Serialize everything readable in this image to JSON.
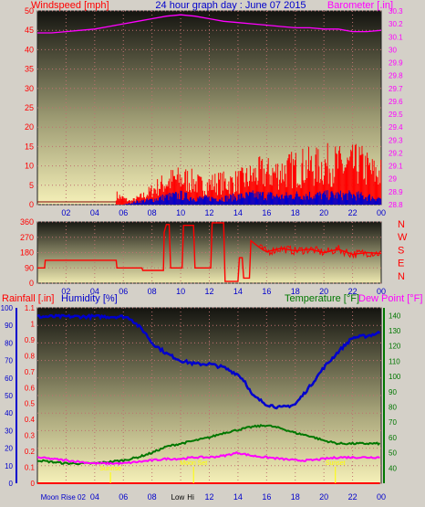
{
  "header": {
    "title": "24 hour graph day : June 07 2015",
    "left_label": "Windspeed [mph]",
    "right_label": "Barometer [.in]"
  },
  "colors": {
    "background": "#d4d0c8",
    "red": "#ff0000",
    "blue": "#0000cc",
    "magenta": "#ff00ff",
    "green": "#007700",
    "yellow": "#ffff00",
    "plot_top": "#141410",
    "plot_bottom": "#f5f0b8"
  },
  "time_ticks": [
    "02",
    "04",
    "06",
    "08",
    "10",
    "12",
    "14",
    "16",
    "18",
    "20",
    "22",
    "00"
  ],
  "chart_data": [
    {
      "type": "line",
      "panel": "wind-barometer",
      "x_unit": "hour",
      "xlim": [
        0,
        24
      ],
      "left_axis": {
        "label": "Windspeed [mph]",
        "range": [
          0,
          50
        ],
        "ticks": [
          "0",
          "5",
          "10",
          "15",
          "20",
          "25",
          "30",
          "35",
          "40",
          "45",
          "50"
        ]
      },
      "right_axis": {
        "label": "Barometer [.in]",
        "range": [
          28.8,
          30.3
        ],
        "ticks": [
          "28.8",
          "28.9",
          "29",
          "29.1",
          "29.2",
          "29.3",
          "29.4",
          "29.5",
          "29.6",
          "29.7",
          "29.8",
          "29.9",
          "30",
          "30.1",
          "30.2",
          "30.3"
        ]
      },
      "series": [
        {
          "color": "#ff00ff",
          "axis": "right",
          "x": [
            0,
            1,
            2,
            3,
            4,
            5,
            6,
            7,
            8,
            9,
            10,
            11,
            12,
            13,
            14,
            15,
            16,
            17,
            18,
            19,
            20,
            21,
            22,
            23,
            24
          ],
          "y": [
            30.13,
            30.13,
            30.14,
            30.15,
            30.16,
            30.18,
            30.2,
            30.22,
            30.24,
            30.26,
            30.27,
            30.26,
            30.24,
            30.22,
            30.21,
            30.2,
            30.19,
            30.18,
            30.17,
            30.17,
            30.16,
            30.16,
            30.14,
            30.14,
            30.15
          ]
        },
        {
          "color": "#ff0000",
          "axis": "left",
          "style": "gust-spikes",
          "x": [
            0,
            2,
            4,
            5.5,
            6.5,
            7.5,
            8.5,
            9.5,
            10.5,
            11.5,
            12.5,
            13.5,
            14.5,
            15.5,
            16.5,
            17.5,
            18.5,
            19.5,
            20.5,
            21.5,
            22.5,
            23.5
          ],
          "y": [
            0,
            0,
            0,
            3,
            1,
            3,
            6,
            8,
            8,
            6,
            7,
            7,
            8,
            10,
            10,
            11,
            12,
            12,
            13,
            12,
            13,
            10
          ]
        },
        {
          "color": "#0000cc",
          "axis": "left",
          "style": "avg-spikes",
          "x": [
            0,
            6,
            7,
            8,
            9,
            10,
            11,
            12,
            13,
            14,
            15,
            16,
            17,
            18,
            19,
            20,
            21,
            22,
            23,
            24
          ],
          "y": [
            0,
            0,
            1,
            1.5,
            2.5,
            3,
            2,
            2,
            2,
            2.5,
            3,
            3,
            2.5,
            3,
            3,
            3,
            3,
            3,
            2.5,
            2
          ]
        }
      ]
    },
    {
      "type": "line",
      "panel": "wind-direction",
      "x_unit": "hour",
      "xlim": [
        0,
        24
      ],
      "left_axis": {
        "range": [
          0,
          360
        ],
        "ticks": [
          "0",
          "90",
          "180",
          "270",
          "360"
        ]
      },
      "right_axis": {
        "ticks": [
          "N",
          "W",
          "S",
          "E",
          "N"
        ]
      },
      "series": [
        {
          "color": "#ff0000",
          "axis": "left",
          "x": [
            0,
            0.5,
            0.55,
            5.5,
            5.55,
            7.3,
            7.35,
            8.8,
            8.85,
            9.0,
            9.2,
            9.3,
            10.1,
            10.2,
            10.9,
            11.0,
            12.1,
            12.2,
            13.0,
            13.1,
            14.0,
            14.1,
            14.3,
            14.4,
            14.8,
            14.9,
            15.5,
            16.0,
            17.0,
            18.0,
            19.0,
            20.0,
            21.0,
            22.0,
            23.0,
            24.0
          ],
          "y": [
            90,
            90,
            135,
            135,
            90,
            90,
            75,
            75,
            300,
            345,
            345,
            90,
            90,
            340,
            340,
            90,
            90,
            355,
            355,
            10,
            10,
            150,
            150,
            30,
            30,
            250,
            210,
            185,
            205,
            190,
            200,
            180,
            200,
            170,
            180,
            175
          ]
        }
      ]
    },
    {
      "type": "line",
      "panel": "rain-humidity-temperature",
      "x_unit": "hour",
      "xlim": [
        0,
        24
      ],
      "rain_axis": {
        "label": "Rainfall [.in]",
        "range": [
          0,
          1.1
        ],
        "ticks": [
          "0",
          "0.1",
          "0.2",
          "0.3",
          "0.4",
          "0.5",
          "0.6",
          "0.7",
          "0.8",
          "0.9",
          "1",
          "1.1"
        ]
      },
      "humidity_axis": {
        "label": "Humidity [%]",
        "range": [
          0,
          100
        ],
        "ticks": [
          "0",
          "10",
          "20",
          "30",
          "40",
          "50",
          "60",
          "70",
          "80",
          "90",
          "100"
        ]
      },
      "temperature_axis": {
        "label": "Temperature [°F]",
        "range": [
          30,
          145
        ],
        "ticks": [
          "40",
          "50",
          "60",
          "70",
          "80",
          "90",
          "100",
          "110",
          "120",
          "130",
          "140"
        ]
      },
      "dewpoint_label": "Dew Point [°F]",
      "series": [
        {
          "color": "#0000cc",
          "axis": "humidity",
          "x": [
            0,
            1,
            2,
            3,
            4,
            5,
            6,
            6.5,
            7,
            7.5,
            8,
            9,
            10,
            11,
            12,
            13,
            14,
            14.5,
            15,
            16,
            17,
            18,
            19,
            20,
            21,
            22,
            23,
            24
          ],
          "y": [
            95,
            95,
            95,
            95,
            95,
            95,
            95,
            94,
            90,
            86,
            80,
            74,
            70,
            68,
            68,
            66,
            62,
            58,
            50,
            45,
            43,
            45,
            55,
            66,
            75,
            83,
            84,
            86
          ]
        },
        {
          "color": "#007700",
          "axis": "temperature",
          "x": [
            0,
            1,
            2,
            3,
            4,
            5,
            6,
            7,
            8,
            9,
            10,
            11,
            12,
            13,
            14,
            15,
            16,
            17,
            18,
            19,
            20,
            21,
            22,
            23,
            24
          ],
          "y": [
            45,
            44,
            43,
            43,
            43,
            44,
            45,
            47,
            50,
            54,
            56,
            58,
            60,
            63,
            65,
            67,
            68,
            66,
            63,
            61,
            58,
            56,
            56,
            56,
            56
          ]
        },
        {
          "color": "#ff00ff",
          "axis": "temperature",
          "x": [
            0,
            1,
            2,
            3,
            4,
            5,
            6,
            7,
            8,
            9,
            10,
            11,
            12,
            13,
            14,
            15,
            16,
            17,
            18,
            19,
            20,
            21,
            22,
            23,
            24
          ],
          "y": [
            47,
            46,
            45,
            44,
            43,
            43,
            43,
            44,
            45,
            46,
            46,
            47,
            47,
            48,
            50,
            48,
            47,
            46,
            45,
            45,
            46,
            47,
            47,
            47,
            47
          ]
        },
        {
          "color": "#ff0000",
          "axis": "rain",
          "x": [
            0,
            24
          ],
          "y": [
            0,
            0
          ]
        }
      ],
      "annotations": [
        {
          "text": "Moon Rise 02",
          "color": "#0000cc",
          "x": 1.8,
          "placement": "below-axis"
        },
        {
          "text": "Low",
          "color": "#000000",
          "x": 9.8,
          "placement": "below-axis"
        },
        {
          "text": "Hi",
          "color": "#000000",
          "x": 10.7,
          "placement": "below-axis"
        },
        {
          "text": "Moon Set",
          "color": "#ffff00",
          "x": 10.9,
          "placement": "in-plot"
        },
        {
          "text": "Sunrise",
          "color": "#ffff00",
          "x": 5.1,
          "placement": "in-plot"
        },
        {
          "text": "Sunset",
          "color": "#ffff00",
          "x": 20.8,
          "placement": "in-plot"
        }
      ]
    }
  ]
}
